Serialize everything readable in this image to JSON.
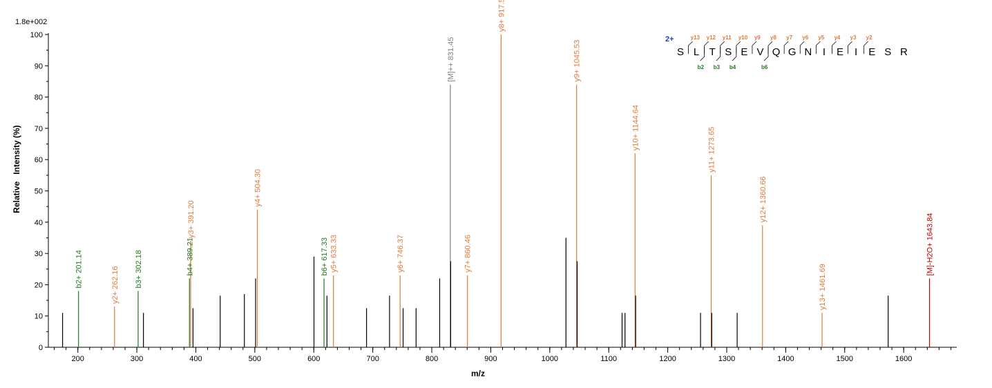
{
  "chart_data": {
    "type": "bar",
    "scale_label": "1.8e+002",
    "xlabel": "m/z",
    "ylabel": "Relative   Intensity (%)",
    "xlim": [
      150,
      1690
    ],
    "ylim": [
      0,
      100
    ],
    "x_ticks": [
      200,
      300,
      400,
      500,
      600,
      700,
      800,
      900,
      1000,
      1100,
      1200,
      1300,
      1400,
      1500,
      1600,
      1700
    ],
    "y_ticks": [
      0,
      10,
      20,
      30,
      40,
      50,
      60,
      70,
      80,
      90,
      100
    ],
    "colors": {
      "y": "#e07b39",
      "b": "#1f7a1f",
      "precursor": "#808080",
      "neutral_loss": "#c00000",
      "unassigned": "#000000"
    },
    "peaks": [
      {
        "mz": 174.1,
        "intensity": 11,
        "ion": "none"
      },
      {
        "mz": 201.14,
        "intensity": 18,
        "ion": "b",
        "label": "b2+ 201.14"
      },
      {
        "mz": 262.16,
        "intensity": 13,
        "ion": "y",
        "label": "y2+ 262.16"
      },
      {
        "mz": 302.18,
        "intensity": 18,
        "ion": "b",
        "label": "b3+ 302.18"
      },
      {
        "mz": 311.2,
        "intensity": 11,
        "ion": "none"
      },
      {
        "mz": 389.21,
        "intensity": 22,
        "ion": "b",
        "label": "b4+ 389.21"
      },
      {
        "mz": 391.2,
        "intensity": 34,
        "ion": "y",
        "label": "y3+ 391.20",
        "dashed": true
      },
      {
        "mz": 395.2,
        "intensity": 12.5,
        "ion": "none"
      },
      {
        "mz": 441.3,
        "intensity": 16.5,
        "ion": "none"
      },
      {
        "mz": 482.3,
        "intensity": 17,
        "ion": "none"
      },
      {
        "mz": 501.3,
        "intensity": 22,
        "ion": "none"
      },
      {
        "mz": 504.3,
        "intensity": 44,
        "ion": "y",
        "label": "y4+ 504.30"
      },
      {
        "mz": 600.3,
        "intensity": 29,
        "ion": "none"
      },
      {
        "mz": 617.33,
        "intensity": 22,
        "ion": "b",
        "label": "b6+ 617.33"
      },
      {
        "mz": 622.3,
        "intensity": 16.5,
        "ion": "none"
      },
      {
        "mz": 633.33,
        "intensity": 23,
        "ion": "y",
        "label": "y5+ 633.33"
      },
      {
        "mz": 689.4,
        "intensity": 12.5,
        "ion": "none"
      },
      {
        "mz": 728.4,
        "intensity": 16.5,
        "ion": "none"
      },
      {
        "mz": 746.37,
        "intensity": 23,
        "ion": "y",
        "label": "y6+ 746.37"
      },
      {
        "mz": 751.4,
        "intensity": 12.5,
        "ion": "none"
      },
      {
        "mz": 773.4,
        "intensity": 12.5,
        "ion": "none"
      },
      {
        "mz": 813.4,
        "intensity": 22,
        "ion": "none"
      },
      {
        "mz": 831.45,
        "intensity": 84,
        "ion": "precursor",
        "label": "[M]++ 831.45"
      },
      {
        "mz": 832.0,
        "intensity": 27.5,
        "ion": "none"
      },
      {
        "mz": 860.46,
        "intensity": 23,
        "ion": "y",
        "label": "y7+ 860.46"
      },
      {
        "mz": 917.5,
        "intensity": 100,
        "ion": "y",
        "label": "y8+ 917.50"
      },
      {
        "mz": 1027.5,
        "intensity": 35,
        "ion": "none"
      },
      {
        "mz": 1045.53,
        "intensity": 84,
        "ion": "y",
        "label": "y9+ 1045.53"
      },
      {
        "mz": 1046.5,
        "intensity": 27.5,
        "ion": "none"
      },
      {
        "mz": 1122.6,
        "intensity": 11,
        "ion": "none"
      },
      {
        "mz": 1127.6,
        "intensity": 11,
        "ion": "none"
      },
      {
        "mz": 1144.64,
        "intensity": 62,
        "ion": "y",
        "label": "y10+ 1144.64"
      },
      {
        "mz": 1145.6,
        "intensity": 16.5,
        "ion": "none"
      },
      {
        "mz": 1255.6,
        "intensity": 11,
        "ion": "none"
      },
      {
        "mz": 1273.65,
        "intensity": 55,
        "ion": "y",
        "label": "y11+ 1273.65"
      },
      {
        "mz": 1274.6,
        "intensity": 11,
        "ion": "none"
      },
      {
        "mz": 1317.7,
        "intensity": 11,
        "ion": "none"
      },
      {
        "mz": 1360.66,
        "intensity": 39,
        "ion": "y",
        "label": "y12+ 1360.66"
      },
      {
        "mz": 1461.69,
        "intensity": 11,
        "ion": "y",
        "label": "y13+ 1461.69"
      },
      {
        "mz": 1573.7,
        "intensity": 16.5,
        "ion": "none"
      },
      {
        "mz": 1643.84,
        "intensity": 22,
        "ion": "neutral_loss",
        "label": "[M]-H2O+ 1643.84"
      }
    ],
    "sequence": {
      "charge": "2+",
      "residues": [
        "S",
        "L",
        "T",
        "S",
        "E",
        "V",
        "Q",
        "G",
        "N",
        "I",
        "E",
        "I",
        "E",
        "S",
        "R"
      ],
      "y_labels": [
        {
          "after": 1,
          "num": "13"
        },
        {
          "after": 2,
          "num": "12"
        },
        {
          "after": 3,
          "num": "11"
        },
        {
          "after": 4,
          "num": "10"
        },
        {
          "after": 5,
          "num": "9"
        },
        {
          "after": 6,
          "num": "8"
        },
        {
          "after": 7,
          "num": "7"
        },
        {
          "after": 8,
          "num": "6"
        },
        {
          "after": 9,
          "num": "5"
        },
        {
          "after": 10,
          "num": "4"
        },
        {
          "after": 11,
          "num": "3"
        },
        {
          "after": 12,
          "num": "2"
        }
      ],
      "b_labels": [
        {
          "after": 2,
          "num": "2"
        },
        {
          "after": 3,
          "num": "3"
        },
        {
          "after": 4,
          "num": "4"
        },
        {
          "after": 6,
          "num": "6"
        }
      ]
    }
  }
}
